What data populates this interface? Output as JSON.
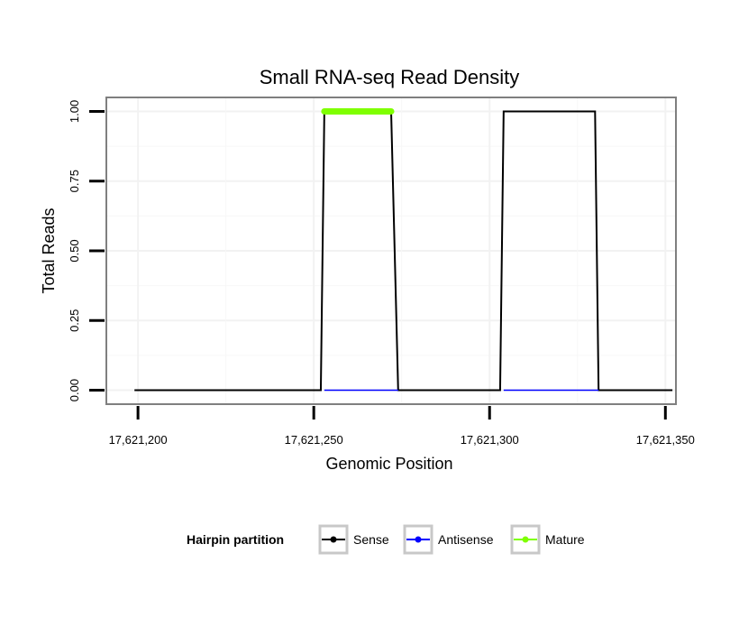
{
  "chart_data": {
    "type": "line",
    "title": "Small RNA-seq Read Density",
    "xlabel": "Genomic Position",
    "ylabel": "Total Reads",
    "xlim": [
      17621191,
      17621353
    ],
    "ylim": [
      -0.05,
      1.05
    ],
    "x_ticks": [
      17621200,
      17621250,
      17621300,
      17621350
    ],
    "x_tick_labels": [
      "17,621,200",
      "17,621,250",
      "17,621,300",
      "17,621,350"
    ],
    "y_ticks": [
      0,
      0.25,
      0.5,
      0.75,
      1.0
    ],
    "y_tick_labels": [
      "0.00",
      "0.25",
      "0.50",
      "0.75",
      "1.00"
    ],
    "grid": true,
    "legend": {
      "title": "Hairpin partition",
      "position": "bottom",
      "entries": [
        {
          "name": "Sense",
          "color": "#000000"
        },
        {
          "name": "Antisense",
          "color": "#0000ff"
        },
        {
          "name": "Mature",
          "color": "#7fff00"
        }
      ]
    },
    "series": [
      {
        "name": "Sense",
        "color": "#000000",
        "x": [
          17621199,
          17621252,
          17621253,
          17621272,
          17621274,
          17621303,
          17621304,
          17621330,
          17621331,
          17621352
        ],
        "y": [
          0,
          0,
          1,
          1,
          0,
          0,
          1,
          1,
          0,
          0
        ]
      },
      {
        "name": "Antisense",
        "color": "#0000ff",
        "x": [
          17621253,
          17621274,
          17621304,
          17621331
        ],
        "y": [
          0,
          0,
          0,
          0
        ]
      },
      {
        "name": "Mature",
        "color": "#7fff00",
        "x": [
          17621253,
          17621272
        ],
        "y": [
          1,
          1
        ]
      }
    ]
  }
}
